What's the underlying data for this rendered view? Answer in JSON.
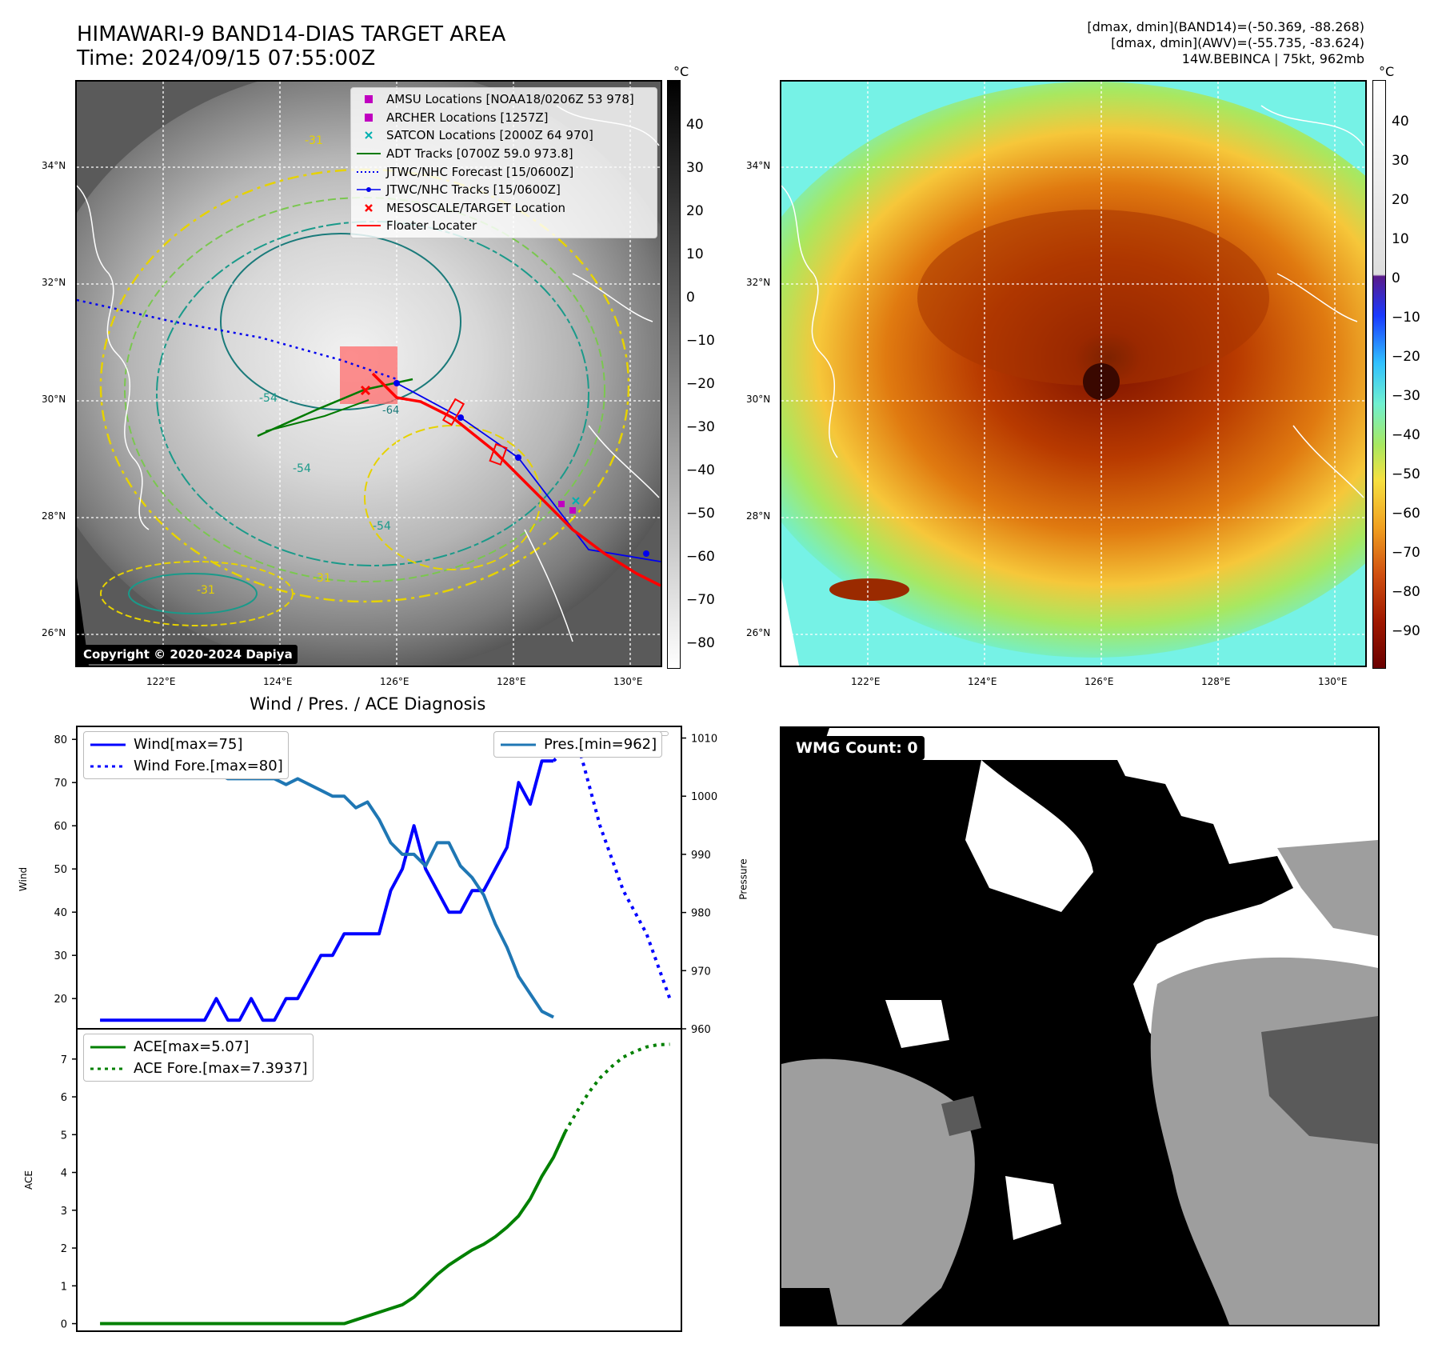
{
  "header": {
    "title_line1": "HIMAWARI-9 BAND14-DIAS TARGET AREA",
    "title_line2": "Time: 2024/09/15 07:55:00Z",
    "stats_line1": "[dmax, dmin](BAND14)=(-50.369, -88.268)",
    "stats_line2": "[dmax, dmin](AWV)=(-55.735, -83.624)",
    "stats_line3": "14W.BEBINCA | 75kt, 962mb"
  },
  "map_left": {
    "lat_labels": [
      "34°N",
      "32°N",
      "30°N",
      "28°N",
      "26°N"
    ],
    "lon_labels": [
      "122°E",
      "124°E",
      "126°E",
      "128°E",
      "130°E"
    ],
    "colorbar_unit": "°C",
    "colorbar_ticks": [
      "40",
      "30",
      "20",
      "10",
      "0",
      "−10",
      "−20",
      "−30",
      "−40",
      "−50",
      "−60",
      "−70",
      "−80"
    ],
    "copyright": "Copyright © 2020-2024 Dapiya",
    "contour_labels": [
      "-54",
      "-54",
      "-54",
      "-31",
      "-31",
      "-31",
      "-64"
    ],
    "legend": [
      {
        "label": "AMSU Locations [NOAA18/0206Z 53 978]",
        "symbol": "square",
        "color": "#c000c0"
      },
      {
        "label": "ARCHER Locations [1257Z]",
        "symbol": "square",
        "color": "#c000c0"
      },
      {
        "label": "SATCON Locations [2000Z 64 970]",
        "symbol": "x",
        "color": "#00b0b0"
      },
      {
        "label": "ADT Tracks [0700Z 59.0 973.8]",
        "symbol": "line",
        "color": "#007a00"
      },
      {
        "label": "JTWC/NHC Forecast [15/0600Z]",
        "symbol": "dotted",
        "color": "#0000ee"
      },
      {
        "label": "JTWC/NHC Tracks [15/0600Z]",
        "symbol": "line-dot",
        "color": "#0000ee"
      },
      {
        "label": "MESOSCALE/TARGET Location",
        "symbol": "x",
        "color": "#ff0000"
      },
      {
        "label": "Floater Locater",
        "symbol": "line",
        "color": "#ff0000"
      }
    ]
  },
  "map_right": {
    "lat_labels": [
      "34°N",
      "32°N",
      "30°N",
      "28°N",
      "26°N"
    ],
    "lon_labels": [
      "122°E",
      "124°E",
      "126°E",
      "128°E",
      "130°E"
    ],
    "colorbar_unit": "°C",
    "colorbar_ticks": [
      "40",
      "30",
      "20",
      "10",
      "0",
      "−10",
      "−20",
      "−30",
      "−40",
      "−50",
      "−60",
      "−70",
      "−80",
      "−90"
    ]
  },
  "wmg": {
    "label": "WMG Count: 0"
  },
  "chart_data": [
    {
      "type": "line",
      "title": "Wind / Pres. / ACE Diagnosis",
      "ylabel": "Wind",
      "ylabel_right": "Pressure",
      "ylim": [
        13,
        83
      ],
      "ylim_right": [
        960,
        1012
      ],
      "yticks": [
        20,
        30,
        40,
        50,
        60,
        70,
        80
      ],
      "yticks_right": [
        960,
        970,
        980,
        990,
        1000,
        1010
      ],
      "legend_left": [
        "Wind[max=75]",
        "Wind Fore.[max=80]"
      ],
      "legend_right": [
        "Pres.[min=962]"
      ],
      "series": [
        {
          "name": "Wind[max=75]",
          "color": "#0000ff",
          "style": "solid",
          "values": [
            15,
            15,
            15,
            15,
            15,
            15,
            15,
            15,
            15,
            15,
            20,
            15,
            15,
            20,
            15,
            15,
            20,
            20,
            25,
            30,
            30,
            35,
            35,
            35,
            35,
            45,
            50,
            60,
            50,
            45,
            40,
            40,
            45,
            45,
            50,
            55,
            70,
            65,
            75,
            75
          ]
        },
        {
          "name": "Wind Fore.[max=80]",
          "color": "#0000ff",
          "style": "dotted",
          "x": [
            39,
            41,
            43,
            45,
            47,
            49
          ],
          "values": [
            75,
            80,
            60,
            45,
            35,
            20
          ]
        },
        {
          "name": "Pres.[min=962]",
          "color": "#1f77b4",
          "style": "solid",
          "axis": "right",
          "values": [
            1010,
            1008,
            1008,
            1008,
            1009,
            1008,
            1007,
            1007,
            1005,
            1004,
            1004,
            1003,
            1003,
            1003,
            1003,
            1003,
            1002,
            1003,
            1002,
            1001,
            1000,
            1000,
            998,
            999,
            996,
            992,
            990,
            990,
            988,
            992,
            992,
            988,
            986,
            983,
            978,
            974,
            969,
            966,
            963,
            962
          ]
        }
      ]
    },
    {
      "type": "line",
      "ylabel": "ACE",
      "ylim": [
        -0.2,
        7.8
      ],
      "yticks": [
        0,
        1,
        2,
        3,
        4,
        5,
        6,
        7
      ],
      "legend": [
        "ACE[max=5.07]",
        "ACE Fore.[max=7.3937]"
      ],
      "series": [
        {
          "name": "ACE[max=5.07]",
          "color": "#008000",
          "style": "solid",
          "values": [
            0,
            0,
            0,
            0,
            0,
            0,
            0,
            0,
            0,
            0,
            0,
            0,
            0,
            0,
            0,
            0,
            0,
            0,
            0,
            0,
            0,
            0,
            0.1,
            0.2,
            0.3,
            0.4,
            0.5,
            0.7,
            1.0,
            1.3,
            1.55,
            1.75,
            1.95,
            2.1,
            2.3,
            2.55,
            2.85,
            3.3,
            3.9,
            4.4,
            5.07
          ]
        },
        {
          "name": "ACE Fore.[max=7.3937]",
          "color": "#008000",
          "style": "dotted",
          "x": [
            40,
            41,
            42,
            43,
            44,
            45,
            46,
            47,
            48,
            49
          ],
          "values": [
            5.07,
            5.6,
            6.1,
            6.5,
            6.8,
            7.05,
            7.2,
            7.32,
            7.38,
            7.39
          ]
        }
      ]
    }
  ]
}
